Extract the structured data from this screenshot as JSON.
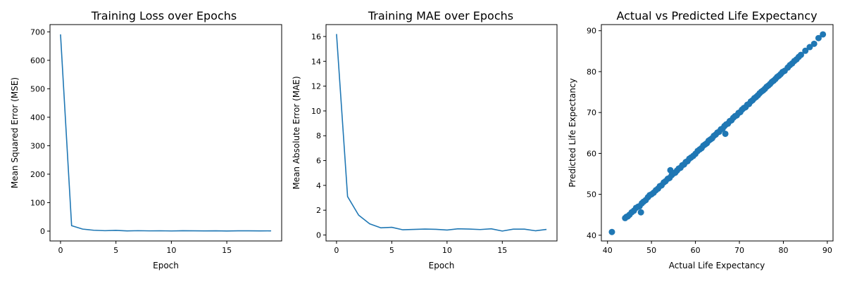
{
  "chart_data": [
    {
      "type": "line",
      "title": "Training Loss over Epochs",
      "xlabel": "Epoch",
      "ylabel": "Mean Squared Error (MSE)",
      "xlim": [
        -0.95,
        19.95
      ],
      "ylim": [
        -34.6,
        725.5
      ],
      "xticks": [
        0,
        5,
        10,
        15
      ],
      "yticks": [
        0,
        100,
        200,
        300,
        400,
        500,
        600,
        700
      ],
      "color": "#1f77b4",
      "x": [
        0,
        1,
        2,
        3,
        4,
        5,
        6,
        7,
        8,
        9,
        10,
        11,
        12,
        13,
        14,
        15,
        16,
        17,
        18,
        19
      ],
      "y": [
        691,
        19,
        7,
        3,
        1.5,
        2.5,
        0.8,
        1.5,
        0.9,
        1.2,
        0.6,
        1.3,
        1,
        0.8,
        1.1,
        0.4,
        1,
        1.1,
        0.7,
        0.9
      ]
    },
    {
      "type": "line",
      "title": "Training MAE over Epochs",
      "xlabel": "Epoch",
      "ylabel": "Mean Absolute Error (MAE)",
      "xlim": [
        -0.95,
        19.95
      ],
      "ylim": [
        -0.48,
        16.96
      ],
      "xticks": [
        0,
        5,
        10,
        15
      ],
      "yticks": [
        0,
        2,
        4,
        6,
        8,
        10,
        12,
        14,
        16
      ],
      "color": "#1f77b4",
      "x": [
        0,
        1,
        2,
        3,
        4,
        5,
        6,
        7,
        8,
        9,
        10,
        11,
        12,
        13,
        14,
        15,
        16,
        17,
        18,
        19
      ],
      "y": [
        16.2,
        3.1,
        1.6,
        0.9,
        0.58,
        0.62,
        0.42,
        0.45,
        0.48,
        0.46,
        0.4,
        0.5,
        0.48,
        0.44,
        0.5,
        0.32,
        0.47,
        0.47,
        0.34,
        0.45
      ]
    },
    {
      "type": "scatter",
      "title": "Actual vs Predicted Life Expectancy",
      "xlabel": "Actual Life Expectancy",
      "ylabel": "Predicted Life Expectancy",
      "xlim": [
        38.6,
        91.3
      ],
      "ylim": [
        38.6,
        91.5
      ],
      "xticks": [
        40,
        50,
        60,
        70,
        80,
        90
      ],
      "yticks": [
        40,
        50,
        60,
        70,
        80,
        90
      ],
      "color": "#1f77b4",
      "points": [
        [
          41,
          40.8
        ],
        [
          44,
          44.2
        ],
        [
          44.3,
          44.5
        ],
        [
          44.6,
          44.6
        ],
        [
          45,
          45
        ],
        [
          45.5,
          45.6
        ],
        [
          46,
          46
        ],
        [
          46.5,
          46.7
        ],
        [
          47,
          47
        ],
        [
          47.3,
          47.1
        ],
        [
          47.6,
          45.6
        ],
        [
          47.8,
          47.8
        ],
        [
          48.2,
          48.2
        ],
        [
          48.7,
          48.6
        ],
        [
          49.2,
          49.3
        ],
        [
          49.6,
          49.8
        ],
        [
          50,
          50
        ],
        [
          50.5,
          50.4
        ],
        [
          51,
          51
        ],
        [
          51.5,
          51.4
        ],
        [
          51.9,
          52
        ],
        [
          52.3,
          52.2
        ],
        [
          52.8,
          52.9
        ],
        [
          53.2,
          53.2
        ],
        [
          53.7,
          53.8
        ],
        [
          54.1,
          54
        ],
        [
          54.3,
          55.9
        ],
        [
          54.6,
          54.7
        ],
        [
          55,
          55.1
        ],
        [
          55.4,
          55.3
        ],
        [
          55.8,
          55.8
        ],
        [
          56.2,
          56.3
        ],
        [
          56.6,
          56.5
        ],
        [
          57,
          57.1
        ],
        [
          57.4,
          57.3
        ],
        [
          57.8,
          57.9
        ],
        [
          58.2,
          58.1
        ],
        [
          58.6,
          58.7
        ],
        [
          59,
          59
        ],
        [
          59.5,
          59.4
        ],
        [
          60,
          59.9
        ],
        [
          60.5,
          60.6
        ],
        [
          61,
          61
        ],
        [
          61.4,
          61.3
        ],
        [
          61.8,
          61.9
        ],
        [
          62.2,
          62.2
        ],
        [
          62.6,
          62.5
        ],
        [
          63,
          63.1
        ],
        [
          63.4,
          63.4
        ],
        [
          63.8,
          63.7
        ],
        [
          64.2,
          64.3
        ],
        [
          64.6,
          64.6
        ],
        [
          65,
          65.1
        ],
        [
          65.4,
          65.3
        ],
        [
          65.8,
          65.9
        ],
        [
          66.2,
          66.1
        ],
        [
          66.6,
          66.7
        ],
        [
          66.8,
          64.8
        ],
        [
          67,
          67.1
        ],
        [
          67.4,
          67.3
        ],
        [
          67.8,
          67.9
        ],
        [
          68.2,
          68.1
        ],
        [
          68.6,
          68.7
        ],
        [
          69,
          69.1
        ],
        [
          69.4,
          69.3
        ],
        [
          69.8,
          69.9
        ],
        [
          70.2,
          70.1
        ],
        [
          70.6,
          70.7
        ],
        [
          71,
          71.1
        ],
        [
          71.4,
          71.3
        ],
        [
          71.8,
          71.9
        ],
        [
          72.2,
          72.1
        ],
        [
          72.6,
          72.7
        ],
        [
          73,
          73
        ],
        [
          73.4,
          73.5
        ],
        [
          73.8,
          73.8
        ],
        [
          74.2,
          74.2
        ],
        [
          74.6,
          74.7
        ],
        [
          75,
          75.1
        ],
        [
          75.4,
          75.4
        ],
        [
          75.8,
          75.8
        ],
        [
          76.2,
          76.3
        ],
        [
          76.6,
          76.6
        ],
        [
          77,
          77
        ],
        [
          77.4,
          77.5
        ],
        [
          77.8,
          77.8
        ],
        [
          78.2,
          78.2
        ],
        [
          78.6,
          78.7
        ],
        [
          79,
          79
        ],
        [
          79.4,
          79.4
        ],
        [
          79.8,
          79.9
        ],
        [
          80.3,
          80.2
        ],
        [
          81,
          81
        ],
        [
          81.5,
          81.6
        ],
        [
          82,
          82
        ],
        [
          82.5,
          82.6
        ],
        [
          83,
          83
        ],
        [
          83.5,
          83.6
        ],
        [
          84,
          84.1
        ],
        [
          85,
          85.1
        ],
        [
          86,
          86
        ],
        [
          87,
          86.8
        ],
        [
          88,
          88.2
        ],
        [
          89,
          89.1
        ]
      ]
    }
  ]
}
